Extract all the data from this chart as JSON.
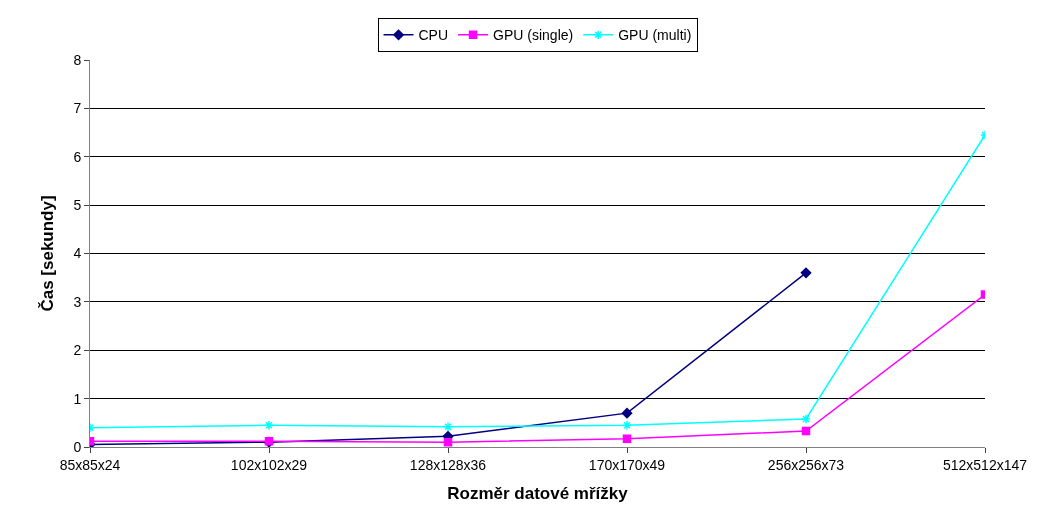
{
  "chart_data": {
    "type": "line",
    "xlabel": "Rozměr datové mřížky",
    "ylabel": "Čas [sekundy]",
    "categories": [
      "85x85x24",
      "102x102x29",
      "128x128x36",
      "170x170x49",
      "256x256x73",
      "512x512x147"
    ],
    "series": [
      {
        "name": "CPU",
        "color": "#000080",
        "marker": "diamond",
        "values": [
          0.05,
          0.1,
          0.22,
          0.7,
          3.6,
          null
        ]
      },
      {
        "name": "GPU (single)",
        "color": "#ff00ff",
        "marker": "square",
        "values": [
          0.12,
          0.12,
          0.1,
          0.17,
          0.33,
          3.15
        ]
      },
      {
        "name": "GPU (multi)",
        "color": "#00ffff",
        "marker": "cross",
        "values": [
          0.4,
          0.45,
          0.42,
          0.45,
          0.58,
          6.45
        ]
      }
    ],
    "ylim": [
      0,
      8
    ],
    "yticks": [
      0,
      1,
      2,
      3,
      4,
      5,
      6,
      7,
      8
    ],
    "grid": "y",
    "legend": "top",
    "line_style": "solid"
  }
}
